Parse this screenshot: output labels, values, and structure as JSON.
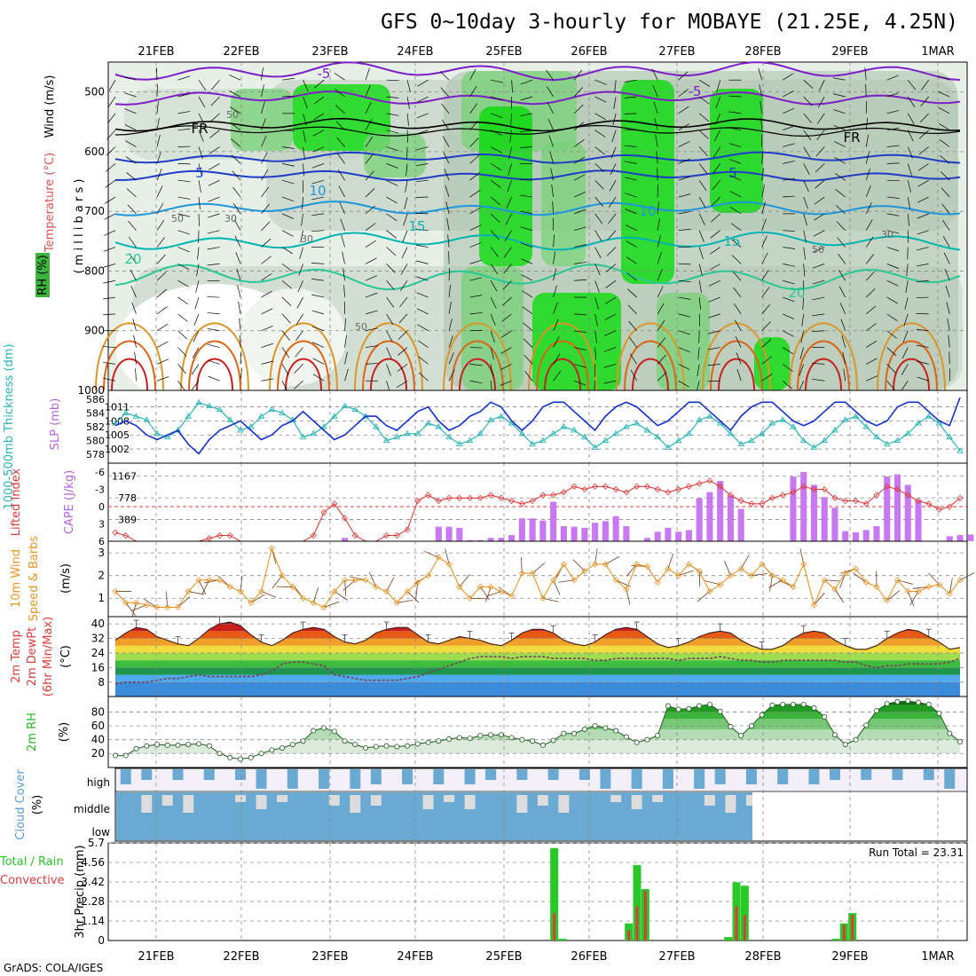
{
  "title": "GFS 0~10day 3-hourly for MOBAYE (21.25E, 4.25N)",
  "footer": "GrADS: COLA/IGES",
  "run_total": "Run Total = 23.31",
  "dates": [
    "21FEB",
    "22FEB",
    "23FEB",
    "24FEB",
    "25FEB",
    "26FEB",
    "27FEB",
    "28FEB",
    "29FEB",
    "1MAR"
  ],
  "colors": {
    "rh_dark": "#00dc00",
    "rh_mid": "#78d278",
    "rh_light": "#b4d2b4",
    "rh_pale": "#e6f0e6",
    "temp_neg": "#7d1ec8",
    "temp_5": "#1e3cc8",
    "temp_10": "#1e96dc",
    "temp_15": "#00b4b4",
    "temp_20": "#28c896",
    "temp_25": "#dc9628",
    "temp_30": "#dc6414",
    "temp_35": "#c81e1e",
    "slp": "#1432c8",
    "thickness": "#28b4b4",
    "cape": "#c878f0",
    "lifted": "#dc3c3c",
    "wind": "#e69628",
    "rh2m": "#28b428",
    "cloud": "#6aaad2",
    "precip_total": "#28c828",
    "precip_conv": "#dc3c3c"
  },
  "panels": {
    "upper": {
      "label_wind": "Wind (m/s)",
      "label_temp": "Temperature (°C)",
      "label_rh": "RH (%)",
      "ylabel": "( m i l l i b a r s )",
      "yticks": [
        "500",
        "600",
        "700",
        "800",
        "900",
        "1000"
      ],
      "contour_labels": [
        "-5",
        "-5",
        "FR",
        "FR",
        "5",
        "5",
        "10",
        "10",
        "15",
        "15",
        "20",
        "20",
        "30",
        "30",
        "30",
        "50",
        "50",
        "50",
        "50"
      ]
    },
    "slp": {
      "label_thickness": "1000-500mb Thickness (dm)",
      "label_slp": "SLP (mb)",
      "left_ticks": [
        "586",
        "584",
        "582",
        "580",
        "578"
      ],
      "right_ticks": [
        "1011",
        "1008",
        "1005",
        "1002"
      ]
    },
    "cape": {
      "label_lifted": "Lifted Index",
      "label_cape": "CAPE (J/kg)",
      "left_ticks": [
        "-6",
        "-3",
        "0",
        "3",
        "6"
      ],
      "right_ticks": [
        "1167",
        "778",
        "389"
      ]
    },
    "wind10": {
      "label": "10m Wind",
      "label2": "Speed & Barbs",
      "unit": "(m/s)",
      "ticks": [
        "3",
        "2",
        "1"
      ]
    },
    "temp2m": {
      "label": "2m Temp",
      "label2": "2m DewPt",
      "label3": "(6hr Min/Max)",
      "unit": "(°C)",
      "ticks": [
        "40",
        "32",
        "24",
        "16",
        "8"
      ]
    },
    "rh2m": {
      "label": "2m RH",
      "unit": "(%)",
      "ticks": [
        "80",
        "60",
        "40",
        "20"
      ]
    },
    "cloud": {
      "label": "Cloud Cover",
      "unit": "(%)",
      "levels": [
        "high",
        "middle",
        "low"
      ]
    },
    "precip": {
      "label": "Total / Rain",
      "label2": "Convective",
      "unit": "3hr Precip (mm)",
      "ticks": [
        "5.7",
        "4.56",
        "3.42",
        "2.28",
        "1.14",
        "0"
      ]
    }
  },
  "chart_data": [
    {
      "type": "line",
      "title": "SLP (mb)",
      "x_unit": "3-hourly steps from 20FEB12Z",
      "series": [
        {
          "name": "SLP (mb)",
          "values": [
            1007,
            1008,
            1007,
            1005,
            1004,
            1005,
            1006,
            1003,
            1001,
            1004,
            1006,
            1007,
            1008,
            1006,
            1004,
            1005,
            1007,
            1008,
            1010,
            1008,
            1006,
            1004,
            1005,
            1007,
            1009,
            1009,
            1007,
            1006,
            1008,
            1010,
            1011,
            1008,
            1006,
            1007,
            1009,
            1010,
            1012,
            1011,
            1008,
            1006,
            1008,
            1011,
            1012,
            1012,
            1010,
            1008,
            1006,
            1009,
            1011,
            1012,
            1011,
            1009,
            1007,
            1008,
            1010,
            1012,
            1012,
            1010,
            1008,
            1006,
            1009,
            1011,
            1012,
            1012,
            1010,
            1008,
            1007,
            1008,
            1010,
            1012,
            1012,
            1010,
            1008,
            1007,
            1008,
            1011,
            1012,
            1012,
            1010,
            1008,
            1007,
            1013
          ]
        }
      ]
    },
    {
      "type": "line",
      "title": "1000-500mb Thickness (dm)",
      "series": [
        {
          "name": "Thickness (dm)",
          "values": [
            582.5,
            584,
            583.5,
            583,
            581,
            580.5,
            581.5,
            583.5,
            585.5,
            585,
            584.5,
            583,
            581.5,
            582,
            583.5,
            584.5,
            584,
            583,
            580.5,
            581,
            582,
            583.5,
            585,
            584.5,
            583.5,
            582,
            580,
            580.5,
            581,
            581,
            582.5,
            582,
            580.5,
            579.5,
            580,
            581,
            583,
            583.5,
            582.5,
            581,
            579.5,
            580,
            581,
            582,
            581.5,
            580.5,
            579,
            580,
            581,
            582,
            582.5,
            581.5,
            580.5,
            579,
            580,
            581,
            583,
            583.5,
            582.5,
            581,
            579.5,
            580,
            581,
            582.5,
            583,
            582,
            580,
            579,
            580,
            581.5,
            583,
            583.5,
            582,
            580.5,
            579.5,
            580,
            581,
            582.5,
            583.5,
            582.5,
            580.5,
            578.5
          ]
        }
      ]
    },
    {
      "type": "bar",
      "title": "CAPE (J/kg)",
      "series": [
        {
          "name": "CAPE (J/kg)",
          "values": [
            0,
            0,
            0,
            0,
            0,
            0,
            0,
            0,
            0,
            0,
            0,
            0,
            0,
            0,
            0,
            0,
            0,
            0,
            0,
            0,
            0,
            0,
            60,
            0,
            0,
            0,
            0,
            0,
            0,
            0,
            0,
            260,
            260,
            240,
            20,
            20,
            60,
            60,
            110,
            410,
            410,
            370,
            710,
            270,
            260,
            240,
            330,
            360,
            450,
            270,
            0,
            60,
            170,
            240,
            170,
            200,
            770,
            880,
            1080,
            820,
            580,
            0,
            0,
            0,
            0,
            1160,
            1240,
            1010,
            790,
            600,
            180,
            160,
            200,
            270,
            1160,
            1200,
            1010,
            740,
            0,
            0,
            90,
            110,
            120,
            390
          ]
        }
      ]
    },
    {
      "type": "line",
      "title": "Lifted Index",
      "series": [
        {
          "name": "Lifted Index",
          "values": [
            4.5,
            5,
            6,
            6,
            6,
            6,
            6,
            6,
            6,
            5.5,
            5,
            5,
            6,
            6,
            6,
            6,
            6,
            6,
            6,
            5,
            1,
            -0.5,
            2,
            5,
            6,
            6,
            5,
            5,
            4,
            -1,
            -2,
            -1,
            -1.5,
            -1.5,
            -1.5,
            -1.5,
            -2,
            -1.5,
            -1,
            -0.5,
            -1,
            -2,
            -2,
            -2.5,
            -3.5,
            -3,
            -3.5,
            -3.5,
            -3,
            -2.5,
            -3.5,
            -3.5,
            -3,
            -2.5,
            -3,
            -3.5,
            -4,
            -4.5,
            -3.5,
            -2,
            -1,
            -0.5,
            -0.5,
            -1.5,
            -2,
            -2.5,
            -3.5,
            -3,
            -3,
            -1.5,
            -1,
            -1,
            -0.5,
            -2,
            -3.5,
            -3,
            -2,
            -1,
            -0.5,
            0.5,
            0,
            -1.5
          ]
        }
      ]
    },
    {
      "type": "line",
      "title": "10m Wind Speed & Barbs",
      "series": [
        {
          "name": "10m Wind Speed (m/s)",
          "values": [
            1.3,
            0.8,
            0.8,
            0.7,
            0.6,
            0.6,
            0.6,
            1.3,
            1.8,
            1.8,
            1.8,
            1.5,
            1.3,
            0.8,
            1.3,
            3.2,
            2.0,
            1.5,
            1.0,
            0.8,
            0.6,
            1.3,
            1.8,
            1.8,
            1.8,
            1.5,
            1.3,
            0.8,
            1.3,
            1.7,
            2.0,
            2.8,
            2.5,
            1.5,
            1.0,
            1.5,
            1.5,
            1.3,
            1.1,
            2.1,
            2.1,
            1.0,
            1.8,
            2.5,
            1.8,
            2.2,
            2.5,
            2.5,
            1.8,
            1.4,
            2.5,
            2.4,
            1.7,
            2.3,
            2.0,
            2.5,
            2.2,
            1.3,
            1.6,
            2.0,
            2.3,
            2.0,
            2.5,
            2.0,
            1.8,
            1.5,
            2.5,
            0.7,
            1.8,
            1.4,
            2.1,
            2.3,
            1.7,
            1.5,
            0.9,
            1.8,
            1.3,
            1.3,
            1.5,
            1.6,
            1.2,
            1.8
          ]
        }
      ]
    },
    {
      "type": "area",
      "title": "2m Temp / 2m DewPt",
      "series": [
        {
          "name": "2m Temp (°C)",
          "values": [
            31,
            35,
            38,
            37,
            33,
            31,
            29,
            28,
            32,
            37,
            40,
            41,
            39,
            34,
            30,
            28,
            31,
            35,
            37,
            38,
            37,
            33,
            30,
            29,
            31,
            35,
            37,
            38,
            38,
            34,
            30,
            29,
            31,
            33,
            32,
            31,
            29,
            28,
            31,
            35,
            37,
            37,
            35,
            31,
            29,
            28,
            30,
            34,
            37,
            38,
            37,
            33,
            29,
            27,
            28,
            30,
            33,
            35,
            36,
            35,
            31,
            28,
            26,
            26,
            28,
            32,
            35,
            36,
            35,
            31,
            28,
            26,
            26,
            28,
            32,
            35,
            37,
            36,
            33,
            30,
            26,
            27
          ]
        },
        {
          "name": "2m DewPt (°C)",
          "values": [
            7,
            8,
            8,
            8,
            9,
            10,
            10,
            11,
            12,
            11,
            11,
            11,
            11,
            11,
            12,
            14,
            18,
            19,
            19,
            18,
            17,
            12,
            11,
            10,
            9,
            9,
            9,
            9,
            10,
            11,
            13,
            15,
            17,
            19,
            21,
            22,
            22,
            22,
            21,
            22,
            22,
            22,
            21,
            21,
            21,
            21,
            20,
            20,
            21,
            21,
            21,
            21,
            21,
            21,
            20,
            21,
            21,
            21,
            22,
            21,
            20,
            20,
            19,
            19,
            20,
            20,
            20,
            20,
            20,
            20,
            19,
            19,
            17,
            16,
            17,
            17,
            18,
            18,
            18,
            18,
            19,
            21
          ]
        }
      ]
    },
    {
      "type": "area",
      "title": "2m RH",
      "series": [
        {
          "name": "2m RH (%)",
          "values": [
            17,
            17,
            27,
            31,
            33,
            32,
            32,
            33,
            34,
            31,
            20,
            14,
            12,
            14,
            20,
            25,
            28,
            33,
            38,
            53,
            57,
            52,
            38,
            33,
            28,
            30,
            31,
            30,
            31,
            34,
            36,
            38,
            41,
            43,
            42,
            46,
            47,
            47,
            43,
            40,
            38,
            32,
            39,
            49,
            49,
            55,
            60,
            57,
            53,
            44,
            36,
            40,
            46,
            89,
            84,
            85,
            89,
            91,
            81,
            59,
            46,
            60,
            76,
            90,
            91,
            91,
            91,
            86,
            73,
            47,
            33,
            40,
            61,
            82,
            92,
            95,
            96,
            94,
            91,
            78,
            49,
            37
          ]
        }
      ]
    },
    {
      "type": "bar",
      "title": "3hr Precip",
      "series": [
        {
          "name": "Total",
          "values": [
            0,
            0,
            0,
            0,
            0,
            0,
            0,
            0,
            0,
            0,
            0,
            0,
            0,
            0,
            0,
            0,
            0,
            0,
            0,
            0,
            0,
            0,
            0,
            0,
            0,
            0,
            0,
            0,
            0,
            0,
            0,
            0,
            0,
            0,
            0,
            0,
            0,
            0,
            0,
            0,
            0,
            0,
            0,
            0,
            0,
            0,
            0,
            0,
            0,
            0,
            0,
            0,
            0,
            5.4,
            0.1,
            0,
            0,
            0,
            0,
            0,
            0,
            0,
            1.0,
            4.4,
            3.0,
            0,
            0,
            0,
            0,
            0,
            0,
            0,
            0,
            0,
            0.2,
            3.4,
            3.2,
            0,
            0,
            0,
            0,
            0,
            0,
            0,
            0,
            0,
            0,
            0.1,
            1.0,
            1.6,
            0,
            0,
            0,
            0,
            0,
            0,
            0,
            0,
            0,
            0,
            0,
            0,
            0
          ]
        },
        {
          "name": "Convective",
          "values": [
            0,
            0,
            0,
            0,
            0,
            0,
            0,
            0,
            0,
            0,
            0,
            0,
            0,
            0,
            0,
            0,
            0,
            0,
            0,
            0,
            0,
            0,
            0,
            0,
            0,
            0,
            0,
            0,
            0,
            0,
            0,
            0,
            0,
            0,
            0,
            0,
            0,
            0,
            0,
            0,
            0,
            0,
            0,
            0,
            0,
            0,
            0,
            0,
            0,
            0,
            0,
            0,
            0,
            1.6,
            0,
            0,
            0,
            0,
            0,
            0,
            0,
            0,
            0.6,
            2.0,
            2.9,
            0,
            0,
            0,
            0,
            0,
            0,
            0,
            0,
            0,
            0,
            2.0,
            1.5,
            0,
            0,
            0,
            0,
            0,
            0,
            0,
            0,
            0,
            0,
            0,
            0.9,
            1.5,
            0,
            0,
            0,
            0,
            0,
            0,
            0,
            0,
            0,
            0,
            0,
            0,
            0
          ]
        }
      ]
    }
  ]
}
